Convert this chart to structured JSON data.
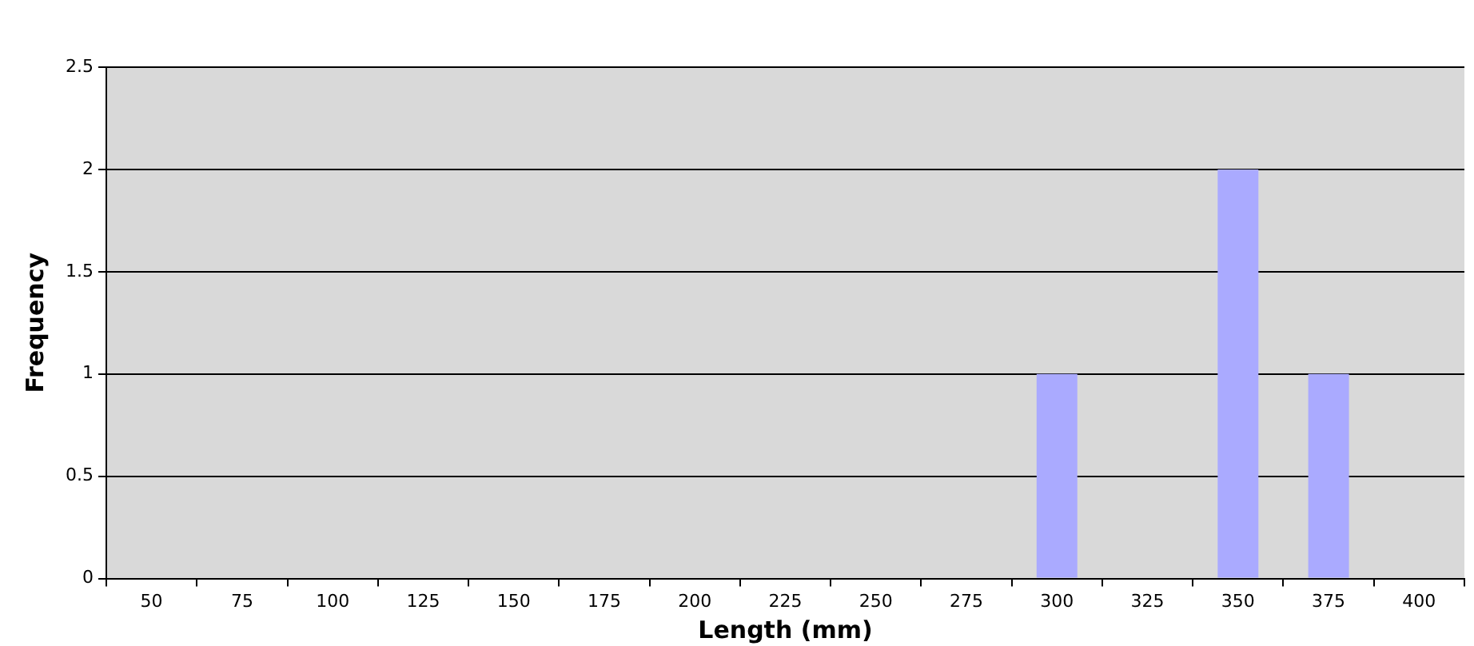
{
  "chart_data": {
    "type": "bar",
    "xlabel": "Length (mm)",
    "ylabel": "Frequency",
    "categories": [
      "50",
      "75",
      "100",
      "125",
      "150",
      "175",
      "200",
      "225",
      "250",
      "275",
      "300",
      "325",
      "350",
      "375",
      "400"
    ],
    "values": [
      0,
      0,
      0,
      0,
      0,
      0,
      0,
      0,
      0,
      0,
      1,
      0,
      2,
      1,
      0
    ],
    "color": "#aaaaff",
    "ylim": [
      0,
      2.5
    ],
    "yticks": [
      0,
      0.5,
      1,
      1.5,
      2,
      2.5
    ],
    "grid": "y",
    "legend": false
  }
}
